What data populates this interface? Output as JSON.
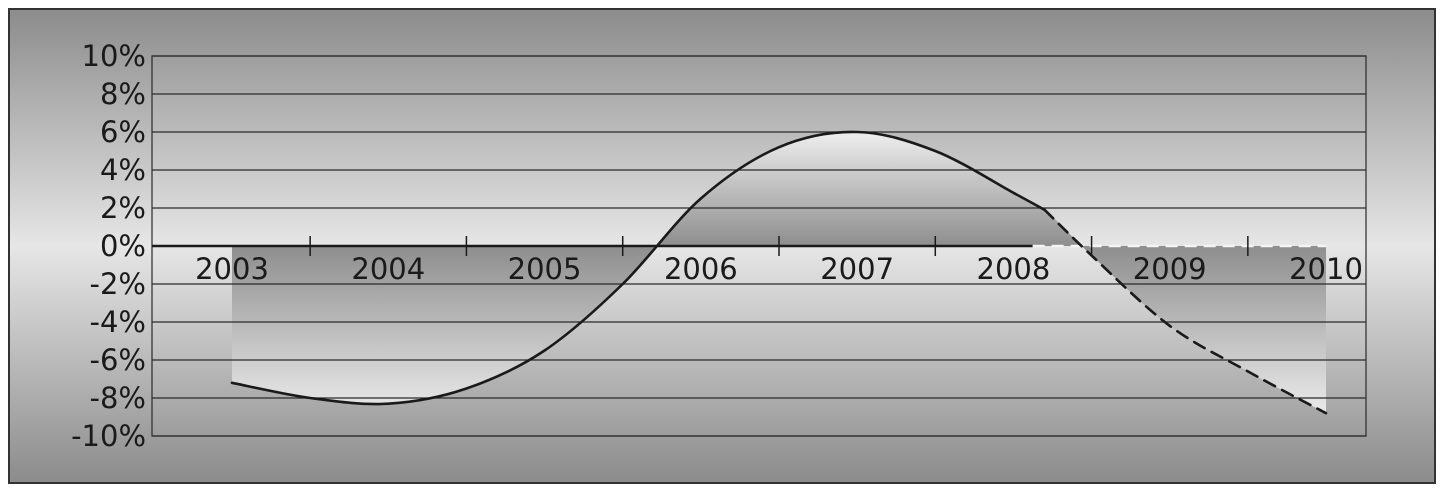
{
  "chart_data": {
    "type": "area",
    "title": "",
    "xlabel": "",
    "ylabel": "",
    "ylim": [
      -10,
      10
    ],
    "yticks": [
      10,
      8,
      6,
      4,
      2,
      0,
      -2,
      -4,
      -6,
      -8,
      -10
    ],
    "ytick_labels": [
      "10%",
      "8%",
      "6%",
      "4%",
      "2%",
      "0%",
      "-2%",
      "-4%",
      "-6%",
      "-8%",
      "-10%"
    ],
    "categories": [
      "2003",
      "2004",
      "2005",
      "2006",
      "2007",
      "2008",
      "2009",
      "2010"
    ],
    "grid": true,
    "legend": "none",
    "series": [
      {
        "x": [
          2003,
          2003.5,
          2004,
          2004.5,
          2005,
          2005.5,
          2006,
          2006.5,
          2007,
          2007.5,
          2008,
          2008.2
        ],
        "y": [
          -7.2,
          -8.0,
          -8.3,
          -7.5,
          -5.5,
          -2.0,
          2.5,
          5.2,
          6.0,
          5.0,
          2.8,
          1.9
        ],
        "style": "solid"
      },
      {
        "x": [
          2008.2,
          2008.5,
          2009,
          2009.5,
          2010
        ],
        "y": [
          1.9,
          -0.5,
          -4.2,
          -6.6,
          -8.8
        ],
        "style": "dashed"
      }
    ],
    "colors": {
      "line": "#1a1a1a",
      "gridline": "#2a2a2a",
      "baseline": "#1a1a1a",
      "background_dark": "#8c8c8c",
      "background_light": "#e6e6e6"
    }
  }
}
